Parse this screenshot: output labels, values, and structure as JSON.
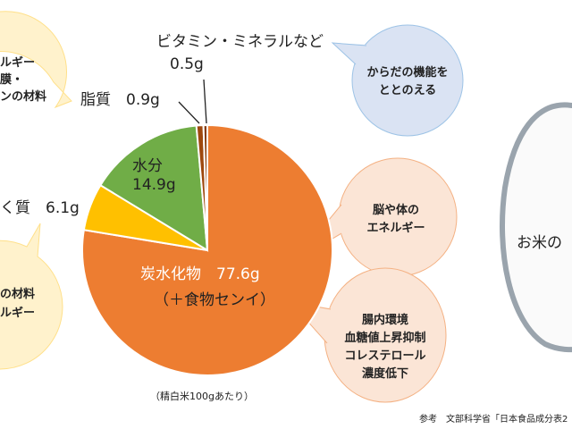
{
  "chart_data": {
    "type": "pie",
    "title": "",
    "note": "（精白米100gあたり）",
    "unit": "g",
    "slices": [
      {
        "name": "炭水化物",
        "value": 77.6,
        "label": "炭水化物　77.6g",
        "sub": "（＋食物センイ）",
        "color": "#ed7d31"
      },
      {
        "name": "たんぱく質",
        "value": 6.1,
        "label": "く質　6.1g",
        "color": "#ffc000"
      },
      {
        "name": "水分",
        "value": 14.9,
        "label_line1": "水分",
        "label_line2": "14.9g",
        "color": "#70ad47"
      },
      {
        "name": "脂質",
        "value": 0.9,
        "label": "脂質　0.9g",
        "color": "#9e480e"
      },
      {
        "name": "ビタミン・ミネラルなど",
        "value": 0.5,
        "label_line1": "ビタミン・ミネラルなど",
        "label_line2": "0.5g",
        "color": "#843c0c"
      }
    ]
  },
  "bubbles": {
    "top_left": [
      "ルギー",
      "膜・",
      "ンの材料"
    ],
    "bottom_left": [
      "の材料",
      "ルギー"
    ],
    "vitamins": [
      "からだの機能を",
      "ととのえる"
    ],
    "carbs_energy": [
      "脳や体の",
      "エネルギー"
    ],
    "fiber": [
      "腸内環境",
      "血糖値上昇抑制",
      "コレステロール",
      "濃度低下"
    ]
  },
  "rice_label": "お米の",
  "source": "参考　文部科学省「日本食品成分表2",
  "colors": {
    "yellow_bubble": "#fff2cc",
    "blue_bubble": "#dae3f3",
    "peach_bubble": "#fbe5d6",
    "rice_border": "#9aa4ad"
  }
}
